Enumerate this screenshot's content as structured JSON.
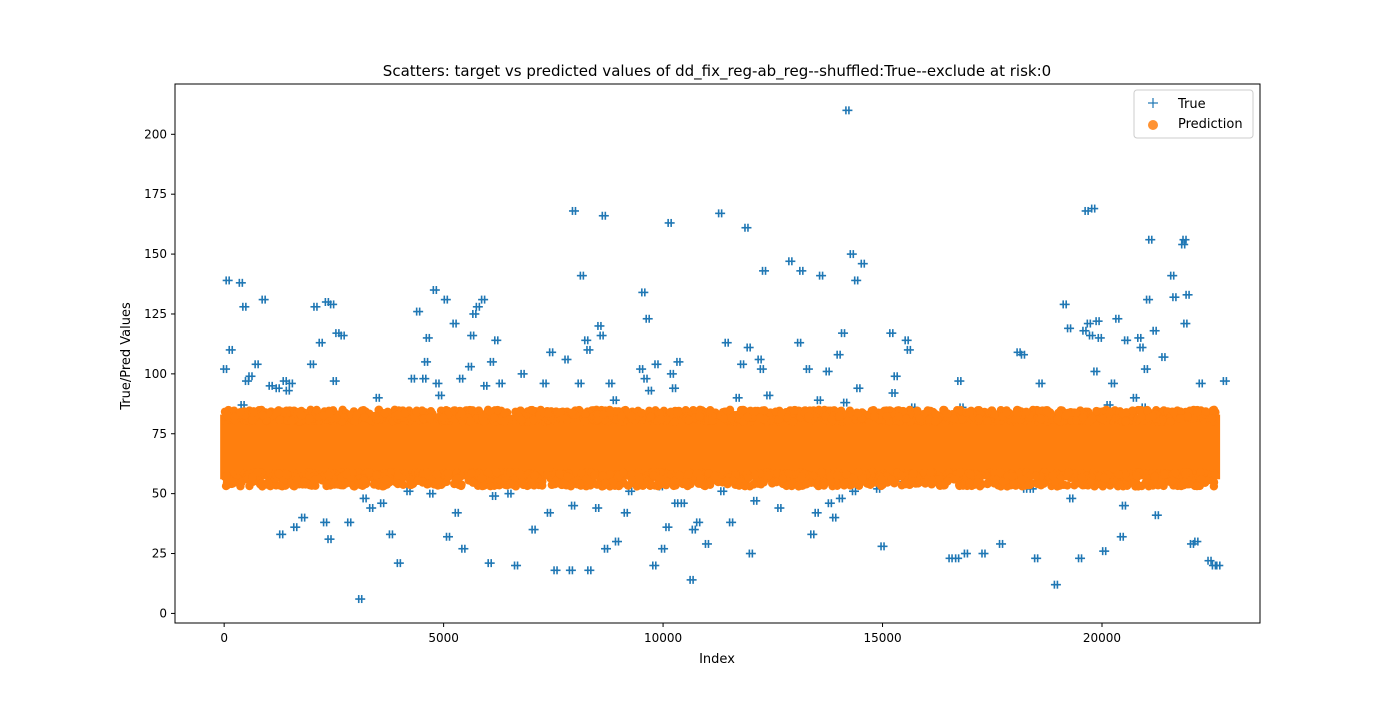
{
  "chart_data": {
    "type": "scatter",
    "title": "Scatters: target vs predicted values of dd_fix_reg-ab_reg--shuffled:True--exclude at risk:0",
    "xlabel": "Index",
    "ylabel": "True/Pred Values",
    "xlim": [
      -1120,
      23600
    ],
    "ylim": [
      -4,
      221
    ],
    "xticks": [
      0,
      5000,
      10000,
      15000,
      20000
    ],
    "yticks": [
      0,
      25,
      50,
      75,
      100,
      125,
      150,
      175,
      200
    ],
    "grid": false,
    "legend_position": "top-right",
    "series": [
      {
        "name": "True",
        "marker": "plus",
        "color": "#1f77b4",
        "points": [
          [
            20,
            102
          ],
          [
            80,
            139
          ],
          [
            150,
            110
          ],
          [
            320,
            59
          ],
          [
            380,
            138
          ],
          [
            420,
            87
          ],
          [
            460,
            128
          ],
          [
            520,
            97
          ],
          [
            600,
            99
          ],
          [
            680,
            60
          ],
          [
            740,
            104
          ],
          [
            900,
            131
          ],
          [
            1060,
            95
          ],
          [
            1220,
            94
          ],
          [
            1300,
            33
          ],
          [
            1380,
            97
          ],
          [
            1450,
            93
          ],
          [
            1520,
            96
          ],
          [
            1620,
            36
          ],
          [
            1800,
            40
          ],
          [
            2000,
            104
          ],
          [
            2080,
            128
          ],
          [
            2200,
            113
          ],
          [
            2300,
            38
          ],
          [
            2340,
            130
          ],
          [
            2400,
            31
          ],
          [
            2460,
            129
          ],
          [
            2520,
            97
          ],
          [
            2580,
            117
          ],
          [
            2700,
            116
          ],
          [
            2760,
            62
          ],
          [
            2850,
            38
          ],
          [
            3100,
            6
          ],
          [
            3200,
            48
          ],
          [
            3350,
            44
          ],
          [
            3500,
            90
          ],
          [
            3600,
            46
          ],
          [
            3800,
            33
          ],
          [
            3980,
            21
          ],
          [
            4200,
            51
          ],
          [
            4300,
            98
          ],
          [
            4420,
            126
          ],
          [
            4560,
            98
          ],
          [
            4600,
            105
          ],
          [
            4640,
            115
          ],
          [
            4720,
            50
          ],
          [
            4800,
            135
          ],
          [
            4860,
            96
          ],
          [
            4920,
            91
          ],
          [
            5000,
            55
          ],
          [
            5050,
            131
          ],
          [
            5100,
            32
          ],
          [
            5250,
            121
          ],
          [
            5300,
            42
          ],
          [
            5400,
            98
          ],
          [
            5450,
            27
          ],
          [
            5600,
            103
          ],
          [
            5650,
            116
          ],
          [
            5700,
            125
          ],
          [
            5780,
            128
          ],
          [
            5900,
            131
          ],
          [
            5950,
            95
          ],
          [
            6050,
            21
          ],
          [
            6100,
            105
          ],
          [
            6150,
            49
          ],
          [
            6200,
            114
          ],
          [
            6300,
            96
          ],
          [
            6500,
            50
          ],
          [
            6650,
            20
          ],
          [
            6800,
            100
          ],
          [
            7050,
            35
          ],
          [
            7300,
            96
          ],
          [
            7400,
            42
          ],
          [
            7450,
            109
          ],
          [
            7550,
            18
          ],
          [
            7700,
            60
          ],
          [
            7800,
            106
          ],
          [
            7900,
            18
          ],
          [
            7950,
            45
          ],
          [
            7970,
            168
          ],
          [
            8100,
            96
          ],
          [
            8150,
            141
          ],
          [
            8250,
            114
          ],
          [
            8300,
            110
          ],
          [
            8320,
            18
          ],
          [
            8500,
            44
          ],
          [
            8550,
            120
          ],
          [
            8600,
            116
          ],
          [
            8650,
            166
          ],
          [
            8700,
            27
          ],
          [
            8800,
            96
          ],
          [
            8900,
            89
          ],
          [
            8950,
            30
          ],
          [
            9150,
            42
          ],
          [
            9250,
            51
          ],
          [
            9350,
            60
          ],
          [
            9500,
            102
          ],
          [
            9550,
            134
          ],
          [
            9600,
            98
          ],
          [
            9650,
            123
          ],
          [
            9700,
            93
          ],
          [
            9800,
            20
          ],
          [
            9850,
            104
          ],
          [
            9950,
            53
          ],
          [
            10000,
            27
          ],
          [
            10100,
            36
          ],
          [
            10150,
            163
          ],
          [
            10200,
            100
          ],
          [
            10250,
            94
          ],
          [
            10300,
            46
          ],
          [
            10350,
            105
          ],
          [
            10450,
            46
          ],
          [
            10650,
            14
          ],
          [
            10700,
            35
          ],
          [
            10800,
            38
          ],
          [
            11000,
            29
          ],
          [
            11200,
            60
          ],
          [
            11300,
            167
          ],
          [
            11350,
            51
          ],
          [
            11450,
            113
          ],
          [
            11550,
            38
          ],
          [
            11700,
            90
          ],
          [
            11800,
            104
          ],
          [
            11900,
            161
          ],
          [
            11950,
            111
          ],
          [
            12000,
            25
          ],
          [
            12100,
            47
          ],
          [
            12200,
            106
          ],
          [
            12250,
            102
          ],
          [
            12300,
            143
          ],
          [
            12400,
            91
          ],
          [
            12450,
            60
          ],
          [
            12650,
            44
          ],
          [
            12700,
            60
          ],
          [
            12800,
            60
          ],
          [
            12900,
            147
          ],
          [
            13100,
            113
          ],
          [
            13150,
            143
          ],
          [
            13300,
            102
          ],
          [
            13400,
            33
          ],
          [
            13500,
            42
          ],
          [
            13550,
            89
          ],
          [
            13600,
            141
          ],
          [
            13750,
            101
          ],
          [
            13800,
            46
          ],
          [
            13900,
            40
          ],
          [
            14000,
            108
          ],
          [
            14050,
            48
          ],
          [
            14100,
            117
          ],
          [
            14150,
            88
          ],
          [
            14200,
            210
          ],
          [
            14300,
            150
          ],
          [
            14350,
            51
          ],
          [
            14400,
            139
          ],
          [
            14450,
            94
          ],
          [
            14550,
            146
          ],
          [
            14700,
            55
          ],
          [
            14900,
            52
          ],
          [
            15000,
            28
          ],
          [
            15200,
            117
          ],
          [
            15250,
            92
          ],
          [
            15300,
            99
          ],
          [
            15400,
            60
          ],
          [
            15500,
            55
          ],
          [
            15550,
            114
          ],
          [
            15600,
            110
          ],
          [
            15700,
            86
          ],
          [
            15900,
            62
          ],
          [
            16200,
            60
          ],
          [
            16400,
            65
          ],
          [
            16550,
            23
          ],
          [
            16700,
            23
          ],
          [
            16750,
            97
          ],
          [
            16800,
            86
          ],
          [
            16900,
            25
          ],
          [
            17300,
            25
          ],
          [
            17500,
            57
          ],
          [
            17700,
            29
          ],
          [
            17900,
            60
          ],
          [
            18100,
            109
          ],
          [
            18200,
            108
          ],
          [
            18250,
            52
          ],
          [
            18400,
            52
          ],
          [
            18500,
            23
          ],
          [
            18600,
            96
          ],
          [
            18800,
            60
          ],
          [
            18950,
            12
          ],
          [
            19150,
            129
          ],
          [
            19250,
            119
          ],
          [
            19300,
            48
          ],
          [
            19450,
            60
          ],
          [
            19500,
            23
          ],
          [
            19600,
            118
          ],
          [
            19650,
            168
          ],
          [
            19700,
            121
          ],
          [
            19750,
            116
          ],
          [
            19800,
            169
          ],
          [
            19850,
            101
          ],
          [
            19900,
            122
          ],
          [
            19950,
            115
          ],
          [
            20050,
            26
          ],
          [
            20150,
            87
          ],
          [
            20250,
            96
          ],
          [
            20350,
            123
          ],
          [
            20450,
            32
          ],
          [
            20500,
            45
          ],
          [
            20550,
            114
          ],
          [
            20650,
            60
          ],
          [
            20750,
            90
          ],
          [
            20850,
            115
          ],
          [
            20900,
            111
          ],
          [
            20950,
            86
          ],
          [
            21000,
            102
          ],
          [
            21050,
            131
          ],
          [
            21100,
            156
          ],
          [
            21200,
            118
          ],
          [
            21250,
            41
          ],
          [
            21400,
            107
          ],
          [
            21500,
            60
          ],
          [
            21600,
            141
          ],
          [
            21650,
            132
          ],
          [
            21800,
            60
          ],
          [
            21850,
            154
          ],
          [
            21880,
            156
          ],
          [
            21900,
            121
          ],
          [
            21950,
            133
          ],
          [
            22050,
            29
          ],
          [
            22150,
            30
          ],
          [
            22250,
            96
          ],
          [
            22350,
            60
          ],
          [
            22450,
            22
          ],
          [
            22550,
            20
          ],
          [
            22650,
            20
          ],
          [
            22800,
            97
          ]
        ]
      },
      {
        "name": "Prediction",
        "marker": "circle",
        "color": "#ff7f0e",
        "band": {
          "x_min": 0,
          "x_max": 22600,
          "y_min": 53,
          "y_max": 85,
          "core_y_min": 56,
          "core_y_max": 83
        }
      }
    ]
  }
}
